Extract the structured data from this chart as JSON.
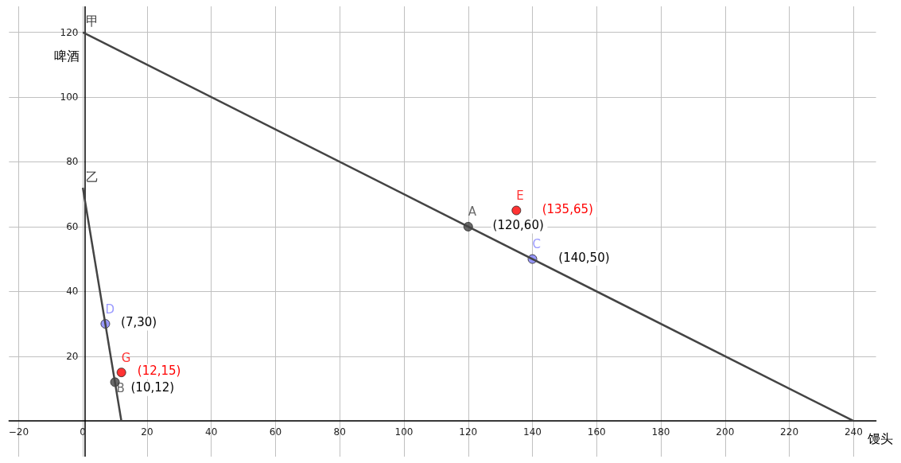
{
  "chart_data": {
    "type": "scatter",
    "xlabel": "馒头",
    "ylabel": "啤酒",
    "xlim": [
      -23,
      247
    ],
    "ylim": [
      -11,
      128
    ],
    "xticks": [
      {
        "value": -20,
        "label": "−20"
      },
      0,
      20,
      40,
      60,
      80,
      100,
      120,
      140,
      160,
      180,
      200,
      220,
      240
    ],
    "yticks": [
      {
        "value": 0,
        "label": null
      },
      20,
      40,
      60,
      80,
      100,
      120
    ],
    "grid": true,
    "legend": false,
    "series": [
      {
        "name": "甲",
        "type": "line",
        "marker": "none",
        "color": "#444444",
        "x": [
          240,
          0
        ],
        "values": [
          0,
          120
        ]
      },
      {
        "name": "乙",
        "type": "line",
        "marker": "none",
        "color": "#444444",
        "x": [
          12,
          0
        ],
        "values": [
          0,
          72
        ]
      },
      {
        "name": "A",
        "marker": "circle",
        "color": "#444444",
        "x": [
          120
        ],
        "values": [
          60
        ]
      },
      {
        "name": "C",
        "marker": "circle",
        "color": "#7f7fff",
        "x": [
          140
        ],
        "values": [
          50
        ]
      },
      {
        "name": "E",
        "marker": "circle",
        "color": "#ff0000",
        "x": [
          135
        ],
        "values": [
          65
        ]
      },
      {
        "name": "D",
        "marker": "circle",
        "color": "#7f7fff",
        "x": [
          7
        ],
        "values": [
          30
        ]
      },
      {
        "name": "G",
        "marker": "circle",
        "color": "#ff0000",
        "x": [
          12
        ],
        "values": [
          15
        ]
      },
      {
        "name": "B",
        "marker": "circle",
        "color": "#444444",
        "x": [
          10
        ],
        "values": [
          12
        ]
      }
    ],
    "annotations": [
      {
        "text": "(120,60)",
        "x": 120,
        "y": 60
      },
      {
        "text": "(140,50)",
        "x": 140,
        "y": 50
      },
      {
        "text": "(135,65)",
        "x": 135,
        "y": 65
      },
      {
        "text": "(7,30)",
        "x": 7,
        "y": 30
      },
      {
        "text": "(12,15)",
        "x": 12,
        "y": 15
      },
      {
        "text": "(10,12)",
        "x": 10,
        "y": 12
      }
    ]
  }
}
